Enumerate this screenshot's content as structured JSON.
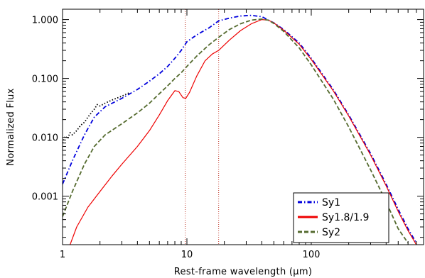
{
  "chart_data": {
    "type": "line",
    "title": "",
    "xlabel": "Rest-frame wavelength (μm)",
    "ylabel": "Normalized Flux",
    "x_scale": "log",
    "y_scale": "log",
    "xlim": [
      1,
      800
    ],
    "ylim": [
      0.00015,
      1.5
    ],
    "x_ticks": [
      {
        "value": 1,
        "label": "1"
      },
      {
        "value": 10,
        "label": "10"
      },
      {
        "value": 100,
        "label": "100"
      }
    ],
    "y_ticks": [
      {
        "value": 0.001,
        "label": "0.001"
      },
      {
        "value": 0.01,
        "label": "0.010"
      },
      {
        "value": 0.1,
        "label": "0.100"
      },
      {
        "value": 1,
        "label": "1.000"
      }
    ],
    "vertical_lines": [
      {
        "x": 9.7,
        "color": "#c0392b",
        "style": "dotted"
      },
      {
        "x": 18,
        "color": "#c0392b",
        "style": "dotted"
      }
    ],
    "legend_position": "bottom-right",
    "series": [
      {
        "name": "Sy1",
        "color": "#0000dd",
        "style": "dash-dot",
        "points": [
          [
            1,
            0.0016
          ],
          [
            1.2,
            0.004
          ],
          [
            1.5,
            0.011
          ],
          [
            1.8,
            0.022
          ],
          [
            2.2,
            0.033
          ],
          [
            3,
            0.046
          ],
          [
            4,
            0.065
          ],
          [
            5,
            0.09
          ],
          [
            6,
            0.12
          ],
          [
            7,
            0.16
          ],
          [
            8,
            0.22
          ],
          [
            9,
            0.3
          ],
          [
            10,
            0.42
          ],
          [
            12,
            0.55
          ],
          [
            15,
            0.72
          ],
          [
            18,
            0.95
          ],
          [
            22,
            1.06
          ],
          [
            27,
            1.15
          ],
          [
            33,
            1.18
          ],
          [
            40,
            1.12
          ],
          [
            50,
            0.88
          ],
          [
            60,
            0.68
          ],
          [
            80,
            0.4
          ],
          [
            100,
            0.22
          ],
          [
            150,
            0.065
          ],
          [
            200,
            0.024
          ],
          [
            300,
            0.0053
          ],
          [
            400,
            0.0016
          ],
          [
            500,
            0.0006
          ],
          [
            600,
            0.00028
          ],
          [
            700,
            0.00016
          ]
        ]
      },
      {
        "name": "Sy1 (dotted extension)",
        "color": "#000000",
        "style": "dotted",
        "points": [
          [
            1,
            0.008
          ],
          [
            1.05,
            0.0105
          ],
          [
            1.1,
            0.0095
          ],
          [
            1.15,
            0.012
          ],
          [
            1.2,
            0.011
          ],
          [
            1.3,
            0.013
          ],
          [
            1.4,
            0.016
          ],
          [
            1.5,
            0.018
          ],
          [
            1.6,
            0.022
          ],
          [
            1.7,
            0.026
          ],
          [
            1.8,
            0.03
          ],
          [
            1.9,
            0.036
          ],
          [
            2,
            0.034
          ],
          [
            2.2,
            0.038
          ],
          [
            2.5,
            0.043
          ],
          [
            3,
            0.05
          ],
          [
            3.5,
            0.058
          ]
        ]
      },
      {
        "name": "Sy1.8/1.9",
        "color": "#ee0000",
        "style": "solid",
        "points": [
          [
            1.15,
            0.00015
          ],
          [
            1.3,
            0.0003
          ],
          [
            1.6,
            0.00065
          ],
          [
            2,
            0.0012
          ],
          [
            2.5,
            0.0022
          ],
          [
            3,
            0.0035
          ],
          [
            4,
            0.007
          ],
          [
            5,
            0.013
          ],
          [
            6,
            0.024
          ],
          [
            7,
            0.042
          ],
          [
            8,
            0.062
          ],
          [
            8.6,
            0.06
          ],
          [
            9.3,
            0.047
          ],
          [
            9.8,
            0.046
          ],
          [
            10.5,
            0.058
          ],
          [
            12,
            0.11
          ],
          [
            14,
            0.2
          ],
          [
            16,
            0.26
          ],
          [
            18,
            0.3
          ],
          [
            22,
            0.45
          ],
          [
            27,
            0.65
          ],
          [
            33,
            0.85
          ],
          [
            40,
            1.0
          ],
          [
            45,
            0.98
          ],
          [
            50,
            0.88
          ],
          [
            60,
            0.66
          ],
          [
            80,
            0.38
          ],
          [
            100,
            0.21
          ],
          [
            150,
            0.062
          ],
          [
            200,
            0.023
          ],
          [
            300,
            0.005
          ],
          [
            400,
            0.0015
          ],
          [
            500,
            0.00055
          ],
          [
            600,
            0.00026
          ],
          [
            700,
            0.00015
          ]
        ]
      },
      {
        "name": "Sy2",
        "color": "#556b2f",
        "style": "dashed",
        "points": [
          [
            1,
            0.00045
          ],
          [
            1.2,
            0.0012
          ],
          [
            1.5,
            0.0035
          ],
          [
            1.8,
            0.007
          ],
          [
            2.2,
            0.011
          ],
          [
            3,
            0.017
          ],
          [
            4,
            0.026
          ],
          [
            5,
            0.038
          ],
          [
            6,
            0.055
          ],
          [
            7,
            0.075
          ],
          [
            8,
            0.1
          ],
          [
            9,
            0.125
          ],
          [
            10,
            0.16
          ],
          [
            12,
            0.24
          ],
          [
            15,
            0.37
          ],
          [
            18,
            0.5
          ],
          [
            22,
            0.68
          ],
          [
            27,
            0.85
          ],
          [
            33,
            0.98
          ],
          [
            40,
            1.02
          ],
          [
            45,
            0.98
          ],
          [
            50,
            0.86
          ],
          [
            60,
            0.63
          ],
          [
            80,
            0.33
          ],
          [
            100,
            0.17
          ],
          [
            150,
            0.045
          ],
          [
            200,
            0.015
          ],
          [
            300,
            0.0028
          ],
          [
            400,
            0.0008
          ],
          [
            500,
            0.00028
          ],
          [
            600,
            0.00016
          ]
        ]
      }
    ],
    "legend": [
      {
        "label": "Sy1",
        "color": "#0000dd",
        "style": "dash-dot"
      },
      {
        "label": "Sy1.8/1.9",
        "color": "#ee0000",
        "style": "solid"
      },
      {
        "label": "Sy2",
        "color": "#556b2f",
        "style": "dashed"
      }
    ]
  }
}
